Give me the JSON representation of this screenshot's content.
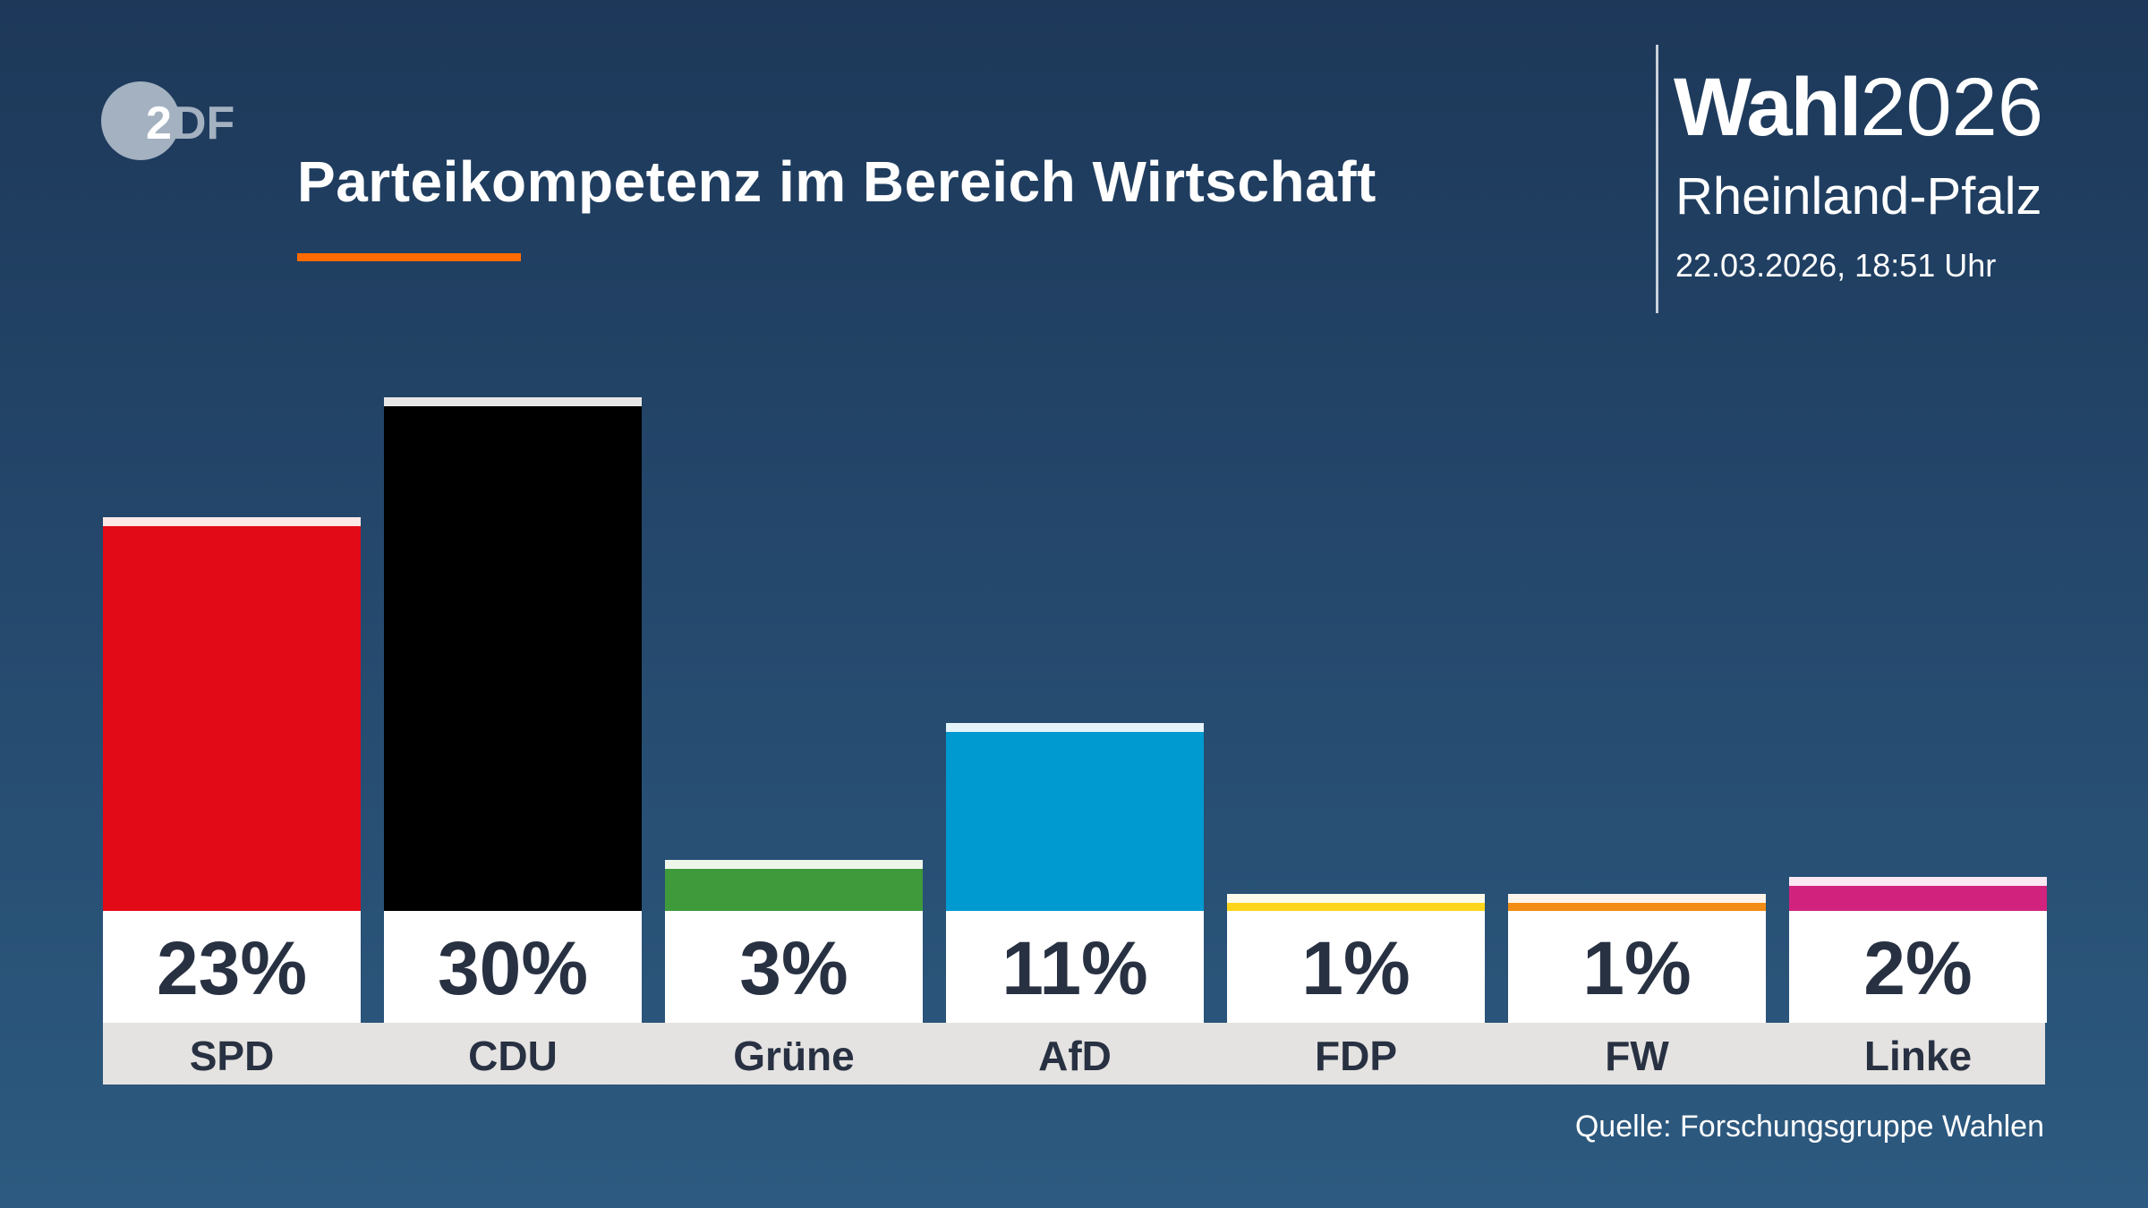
{
  "header": {
    "logo_text": "ZDF",
    "title": "Parteikompetenz im Bereich Wirtschaft",
    "brand_bold": "Wahl",
    "brand_year": "2026",
    "region": "Rheinland-Pfalz",
    "date": "22.03.2026, 18:51 Uhr",
    "accent_color": "#ff6b00"
  },
  "chart_data": {
    "type": "bar",
    "title": "Parteikompetenz im Bereich Wirtschaft",
    "categories": [
      "SPD",
      "CDU",
      "Grüne",
      "AfD",
      "FDP",
      "FW",
      "Linke"
    ],
    "values": [
      23,
      30,
      3,
      11,
      1,
      1,
      2
    ],
    "value_labels": [
      "23%",
      "30%",
      "3%",
      "11%",
      "1%",
      "1%",
      "2%"
    ],
    "colors": [
      "#e30a17",
      "#000000",
      "#3f9a3c",
      "#009ad1",
      "#ffd51c",
      "#f28c14",
      "#d1237d"
    ],
    "cap_colors": [
      "#fde8e8",
      "#e6e6e6",
      "#eef6ea",
      "#e5f4fa",
      "#fffbea",
      "#fff4ea",
      "#fbe8f2"
    ],
    "unit": "%",
    "grid": false
  },
  "footer": {
    "source": "Quelle: Forschungsgruppe Wahlen"
  }
}
